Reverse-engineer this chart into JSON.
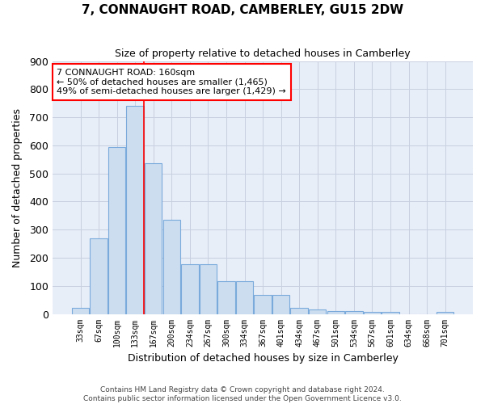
{
  "title": "7, CONNAUGHT ROAD, CAMBERLEY, GU15 2DW",
  "subtitle": "Size of property relative to detached houses in Camberley",
  "xlabel": "Distribution of detached houses by size in Camberley",
  "ylabel": "Number of detached properties",
  "bin_labels": [
    "33sqm",
    "67sqm",
    "100sqm",
    "133sqm",
    "167sqm",
    "200sqm",
    "234sqm",
    "267sqm",
    "300sqm",
    "334sqm",
    "367sqm",
    "401sqm",
    "434sqm",
    "467sqm",
    "501sqm",
    "534sqm",
    "567sqm",
    "601sqm",
    "634sqm",
    "668sqm",
    "701sqm"
  ],
  "bar_values": [
    22,
    270,
    595,
    740,
    535,
    335,
    178,
    178,
    118,
    118,
    68,
    68,
    22,
    15,
    10,
    10,
    8,
    8,
    0,
    0,
    8
  ],
  "bar_color": "#ccddf0",
  "bar_edge_color": "#7aaadb",
  "red_line_index": 4,
  "annotation_text": "7 CONNAUGHT ROAD: 160sqm\n← 50% of detached houses are smaller (1,465)\n49% of semi-detached houses are larger (1,429) →",
  "annotation_box_color": "white",
  "annotation_box_edge": "red",
  "ylim": [
    0,
    900
  ],
  "yticks": [
    0,
    100,
    200,
    300,
    400,
    500,
    600,
    700,
    800,
    900
  ],
  "grid_color": "#c8d0e0",
  "background_color": "#e8eef8",
  "footer_line1": "Contains HM Land Registry data © Crown copyright and database right 2024.",
  "footer_line2": "Contains public sector information licensed under the Open Government Licence v3.0."
}
